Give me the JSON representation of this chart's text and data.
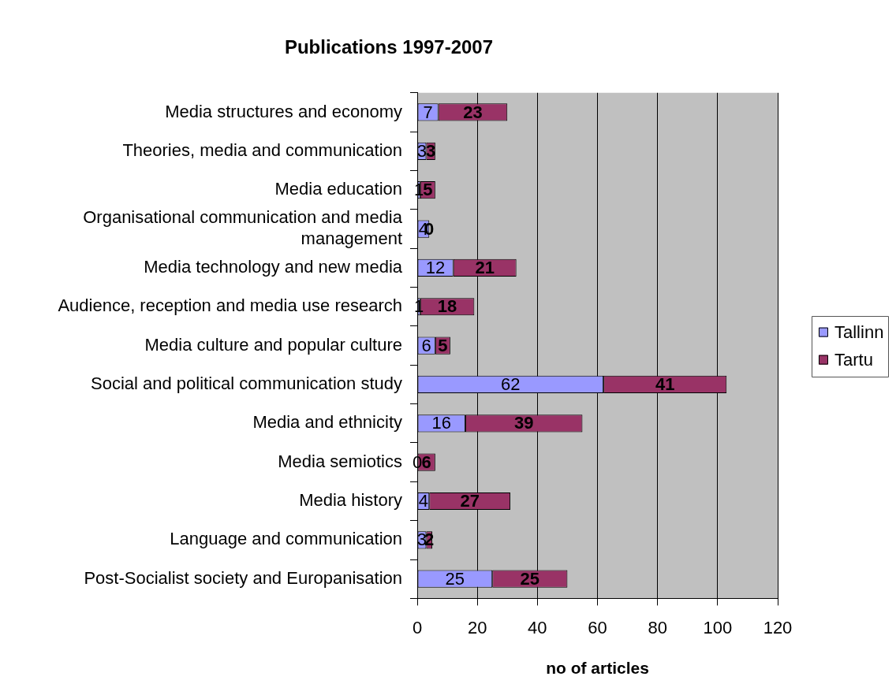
{
  "chart_data": {
    "type": "bar",
    "orientation": "horizontal",
    "stacked": true,
    "title": "Publications 1997-2007",
    "xlabel": "no of articles",
    "categories": [
      "Media structures and economy",
      "Theories, media and communication",
      "Media education",
      "Organisational communication and media management",
      "Media technology and new media",
      "Audience, reception and media use research",
      "Media culture and popular culture",
      "Social and political communication study",
      "Media and ethnicity",
      "Media semiotics",
      "Media history",
      "Language and communication",
      "Post-Socialist society and Europanisation"
    ],
    "series": [
      {
        "name": "Tallinn",
        "color": "#9999ff",
        "values": [
          7,
          3,
          1,
          4,
          12,
          1,
          6,
          62,
          16,
          0,
          4,
          3,
          25
        ]
      },
      {
        "name": "Tartu",
        "color": "#993366",
        "values": [
          23,
          3,
          5,
          0,
          21,
          18,
          5,
          41,
          39,
          6,
          27,
          2,
          25
        ]
      }
    ],
    "xlim": [
      0,
      120
    ],
    "xticks": [
      0,
      20,
      40,
      60,
      80,
      100,
      120
    ],
    "grid": "x",
    "legend": "right",
    "data_labels": true
  }
}
